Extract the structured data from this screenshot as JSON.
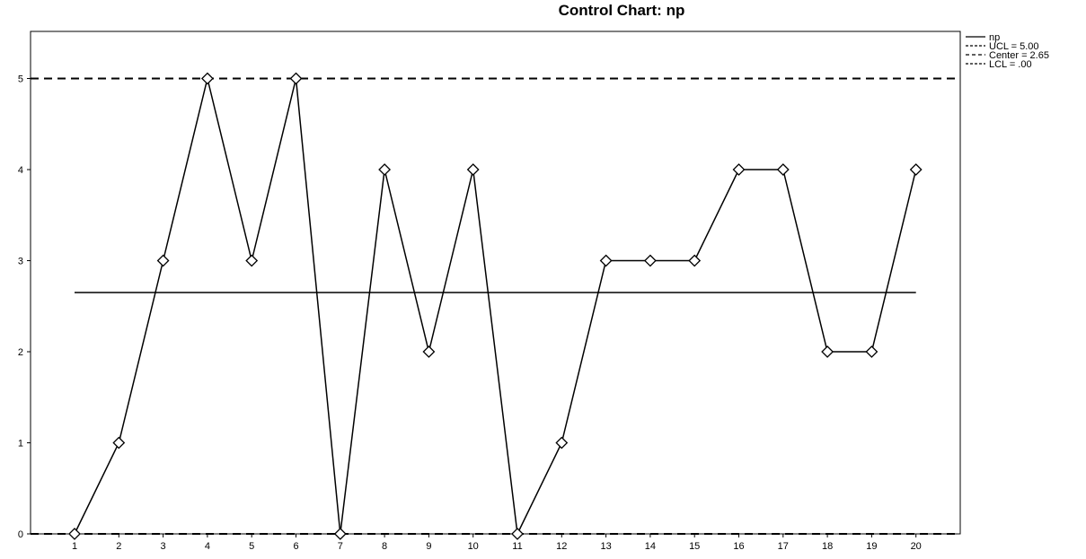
{
  "chart_data": {
    "type": "line",
    "title": "Control Chart: np",
    "xlabel": "",
    "ylabel": "",
    "categories": [
      "1",
      "2",
      "3",
      "4",
      "5",
      "6",
      "7",
      "8",
      "9",
      "10",
      "11",
      "12",
      "13",
      "14",
      "15",
      "16",
      "17",
      "18",
      "19",
      "20"
    ],
    "series": [
      {
        "name": "np",
        "values": [
          0,
          1,
          3,
          5,
          3,
          5,
          0,
          4,
          2,
          4,
          0,
          1,
          3,
          3,
          3,
          4,
          4,
          2,
          2,
          4
        ],
        "marker": "diamond",
        "line_style": "solid"
      }
    ],
    "control_limits": [
      {
        "name": "UCL",
        "label": "UCL = 5.00",
        "value": 5.0,
        "line_style": "dashed"
      },
      {
        "name": "Center",
        "label": "Center = 2.65",
        "value": 2.65,
        "line_style": "solid"
      },
      {
        "name": "LCL",
        "label": "LCL = .00",
        "value": 0.0,
        "line_style": "dashed"
      }
    ],
    "legend": {
      "position": "top-right",
      "entries": [
        "np",
        "UCL = 5.00",
        "Center = 2.65",
        "LCL = .00"
      ]
    },
    "yticks": [
      "0",
      "1",
      "2",
      "3",
      "4",
      "5"
    ],
    "ylim": [
      0,
      5.5
    ],
    "grid": false,
    "colors": {
      "line": "#000000",
      "marker_fill": "#ffffff",
      "background": "#ffffff"
    }
  }
}
